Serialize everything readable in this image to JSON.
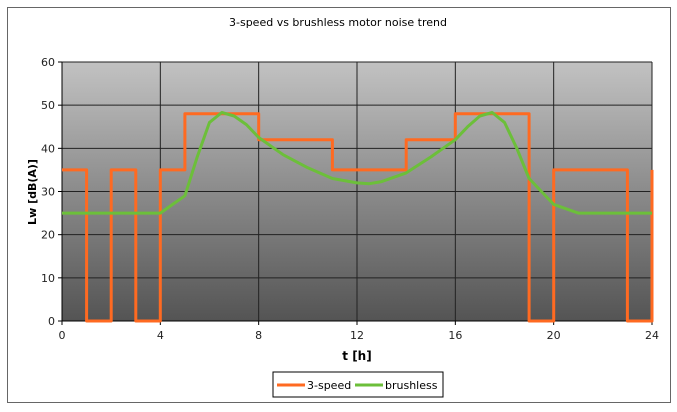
{
  "chart_data": {
    "type": "line",
    "title": "3-speed vs brushless motor noise trend",
    "xlabel": "t [h]",
    "ylabel": "Lw [dB(A)]",
    "xlim": [
      0,
      24
    ],
    "ylim": [
      0,
      60
    ],
    "xticks": [
      0,
      4,
      8,
      12,
      16,
      20,
      24
    ],
    "yticks": [
      0,
      10,
      20,
      30,
      40,
      50,
      60
    ],
    "grid": true,
    "legend_position": "bottom",
    "series": [
      {
        "name": "3-speed",
        "color": "#ff6a21",
        "step": true,
        "x": [
          0,
          1,
          1,
          2,
          2,
          3,
          3,
          4,
          4,
          5,
          5,
          8,
          8,
          11,
          11,
          14,
          14,
          16,
          16,
          19,
          19,
          20,
          20,
          23,
          23,
          24,
          24
        ],
        "y": [
          35,
          35,
          0,
          0,
          35,
          35,
          0,
          0,
          35,
          35,
          48,
          48,
          42,
          42,
          35,
          35,
          42,
          42,
          48,
          48,
          0,
          0,
          35,
          35,
          0,
          0,
          35
        ]
      },
      {
        "name": "brushless",
        "color": "#6cbf3a",
        "x": [
          0,
          4,
          4.5,
          5,
          5.5,
          6,
          6.5,
          7,
          7.5,
          8,
          9,
          10,
          11,
          12,
          12.5,
          13,
          14,
          15,
          16,
          16.5,
          17,
          17.5,
          18,
          18.5,
          19,
          19.5,
          20,
          21,
          24
        ],
        "y": [
          25,
          25,
          27,
          29,
          38,
          46,
          48.3,
          47.5,
          45.5,
          42.5,
          38.5,
          35.5,
          33,
          32,
          31.8,
          32.3,
          34.3,
          38,
          42,
          45,
          47.5,
          48.3,
          46,
          40,
          33,
          30,
          27,
          25,
          25
        ]
      }
    ]
  }
}
